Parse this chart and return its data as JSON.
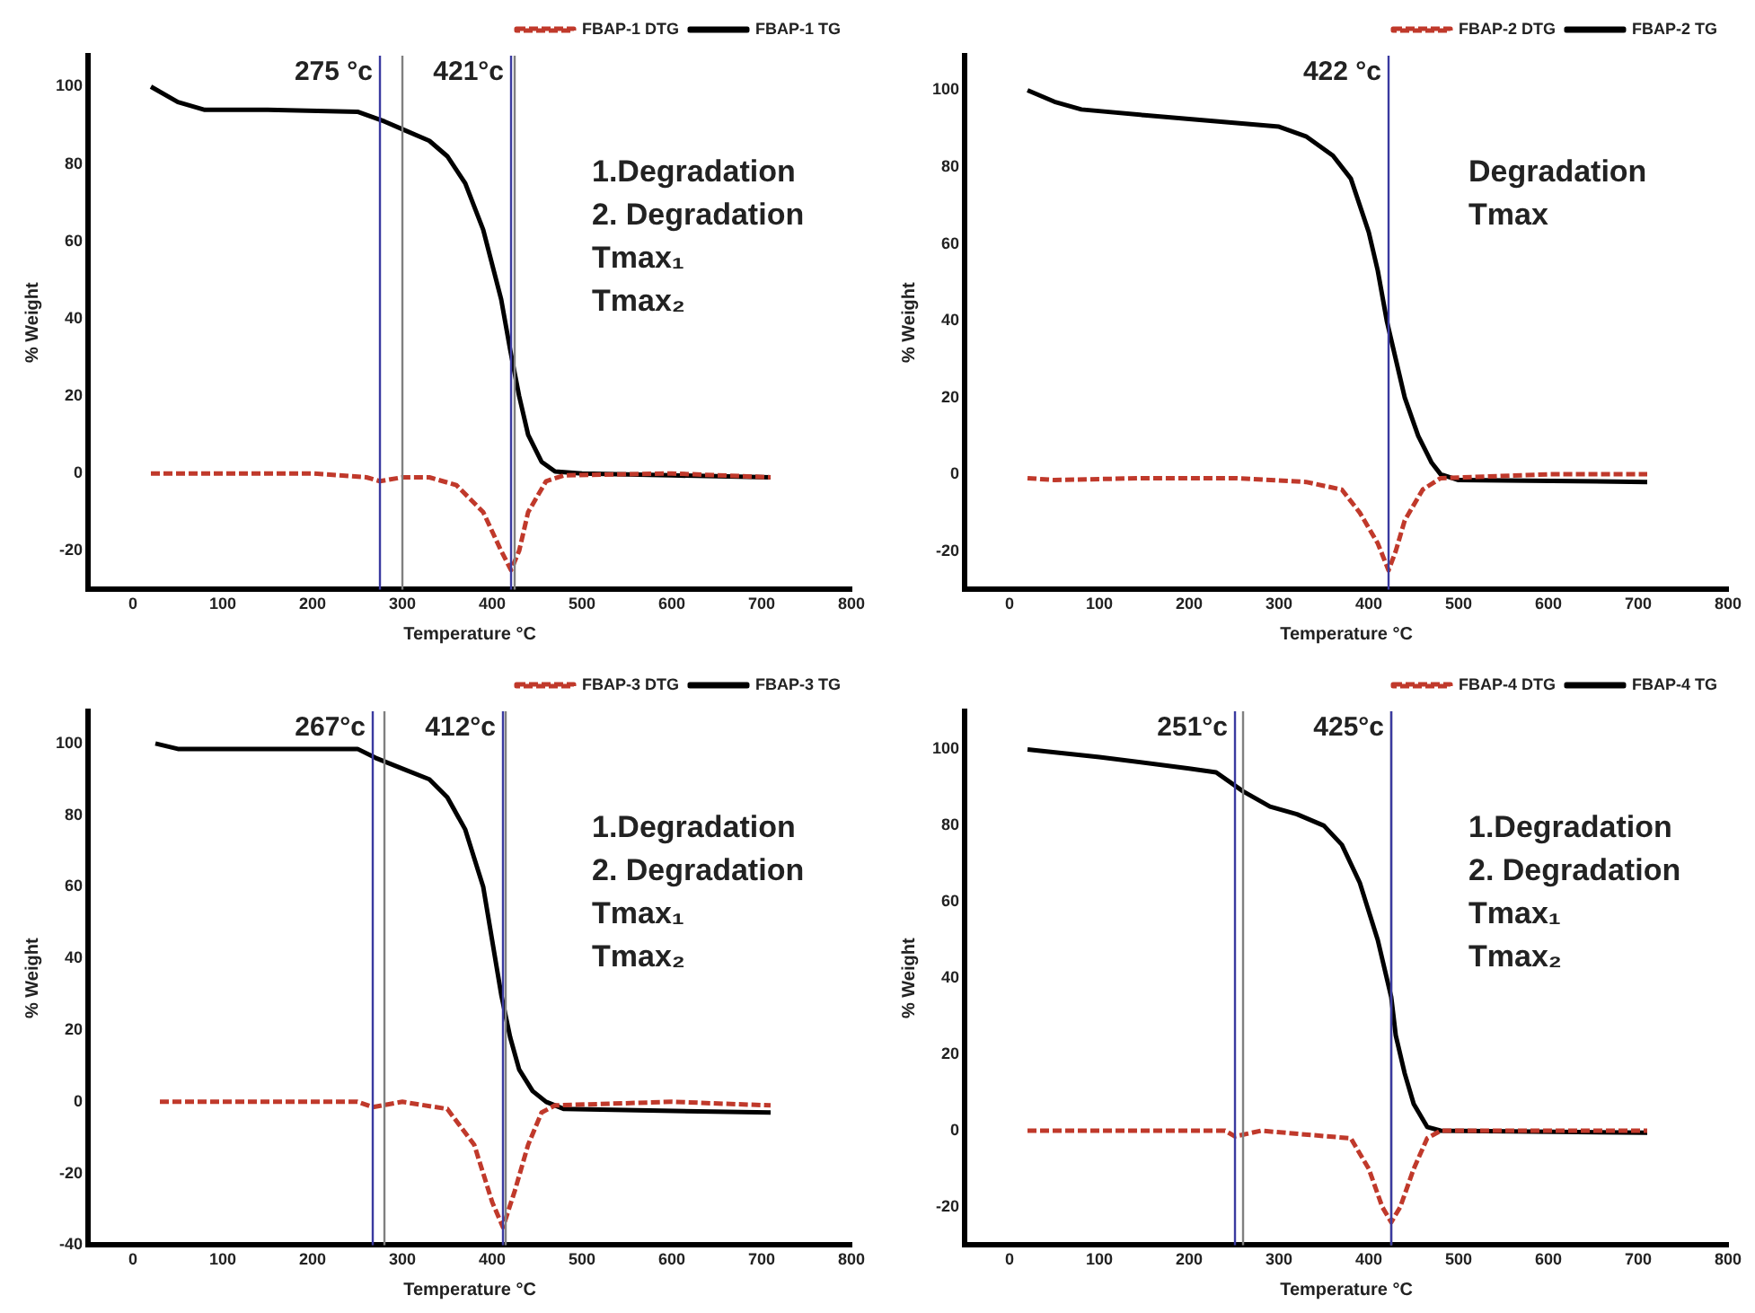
{
  "chart_data": [
    {
      "type": "line",
      "xlabel": "Temperature °C",
      "ylabel": "% Weight",
      "legend": "top right",
      "marker": "none",
      "xlim": [
        -50,
        800
      ],
      "ylim": [
        -30,
        108
      ],
      "xticks": [
        0,
        100,
        200,
        300,
        400,
        500,
        600,
        700,
        800
      ],
      "yticks": [
        -20,
        0,
        20,
        40,
        60,
        80,
        100
      ],
      "series": [
        {
          "name": "FBAP-1 TG",
          "color": "#000000",
          "line_style": "solid",
          "x": [
            20,
            50,
            80,
            150,
            250,
            280,
            300,
            330,
            350,
            370,
            390,
            410,
            420,
            430,
            440,
            455,
            470,
            500,
            600,
            710
          ],
          "values": [
            100,
            96,
            94,
            94,
            93.5,
            91,
            89,
            86,
            82,
            75,
            63,
            45,
            32,
            20,
            10,
            3,
            0.5,
            0,
            -0.5,
            -1
          ]
        },
        {
          "name": "FBAP-1 DTG",
          "color": "#c0392b",
          "line_style": "dashed",
          "x": [
            20,
            100,
            200,
            260,
            275,
            300,
            330,
            360,
            390,
            410,
            421,
            430,
            440,
            460,
            480,
            600,
            710
          ],
          "values": [
            0,
            0,
            0,
            -1,
            -2,
            -1,
            -1,
            -3,
            -10,
            -20,
            -25,
            -20,
            -10,
            -2,
            -0.5,
            0,
            -1
          ]
        }
      ],
      "ref_lines": [
        {
          "axis": "x",
          "value": 300,
          "color": "#808080"
        },
        {
          "axis": "x",
          "value": 425,
          "color": "#808080"
        },
        {
          "axis": "x",
          "value": 275,
          "color": "#3a3aa0",
          "label": "275 °c"
        },
        {
          "axis": "x",
          "value": 421,
          "color": "#3a3aa0",
          "label": "421°c"
        }
      ],
      "annotations": [
        "1.Degradation",
        "2. Degradation",
        "Tmax₁",
        "Tmax₂"
      ]
    },
    {
      "type": "line",
      "xlabel": "Temperature °C",
      "ylabel": "% Weight",
      "legend": "top right",
      "marker": "none",
      "xlim": [
        -50,
        800
      ],
      "ylim": [
        -30,
        109
      ],
      "xticks": [
        0,
        100,
        200,
        300,
        400,
        500,
        600,
        700,
        800
      ],
      "yticks": [
        -20,
        0,
        20,
        40,
        60,
        80,
        100
      ],
      "series": [
        {
          "name": "FBAP-2 TG",
          "color": "#000000",
          "line_style": "solid",
          "x": [
            20,
            50,
            80,
            150,
            250,
            300,
            330,
            360,
            380,
            400,
            410,
            420,
            430,
            440,
            455,
            470,
            480,
            500,
            710
          ],
          "values": [
            100,
            97,
            95,
            93.5,
            91.5,
            90.5,
            88,
            83,
            77,
            63,
            53,
            40,
            30,
            20,
            10,
            3,
            0,
            -1.5,
            -2
          ]
        },
        {
          "name": "FBAP-2 DTG",
          "color": "#c0392b",
          "line_style": "dashed",
          "x": [
            20,
            50,
            150,
            250,
            330,
            370,
            390,
            410,
            422,
            430,
            440,
            460,
            480,
            600,
            710
          ],
          "values": [
            -1,
            -1.5,
            -1,
            -1,
            -2,
            -4,
            -10,
            -18,
            -25,
            -20,
            -12,
            -4,
            -1,
            0,
            0
          ]
        }
      ],
      "ref_lines": [
        {
          "axis": "x",
          "value": 422,
          "color": "#3a3aa0",
          "label": "422 °c"
        }
      ],
      "annotations": [
        "Degradation",
        "Tmax"
      ]
    },
    {
      "type": "line",
      "xlabel": "Temperature °C",
      "ylabel": "% Weight",
      "legend": "top right",
      "marker": "none",
      "xlim": [
        -50,
        800
      ],
      "ylim": [
        -40,
        109
      ],
      "xticks": [
        0,
        100,
        200,
        300,
        400,
        500,
        600,
        700,
        800
      ],
      "yticks": [
        -40,
        -20,
        0,
        20,
        40,
        60,
        80,
        100
      ],
      "series": [
        {
          "name": "FBAP-3 TG",
          "color": "#000000",
          "line_style": "solid",
          "x": [
            25,
            50,
            250,
            270,
            300,
            330,
            350,
            370,
            390,
            400,
            410,
            420,
            430,
            445,
            460,
            480,
            710
          ],
          "values": [
            100,
            98.5,
            98.5,
            96,
            93,
            90,
            85,
            76,
            60,
            45,
            30,
            18,
            9,
            3,
            0,
            -2,
            -3
          ]
        },
        {
          "name": "FBAP-3 DTG",
          "color": "#c0392b",
          "line_style": "dashed",
          "x": [
            30,
            250,
            267,
            300,
            350,
            380,
            400,
            412,
            425,
            440,
            455,
            470,
            600,
            710
          ],
          "values": [
            0,
            0,
            -1.5,
            0,
            -2,
            -12,
            -28,
            -35,
            -25,
            -12,
            -3,
            -1,
            0,
            -1
          ]
        }
      ],
      "ref_lines": [
        {
          "axis": "x",
          "value": 280,
          "color": "#808080"
        },
        {
          "axis": "x",
          "value": 415,
          "color": "#808080"
        },
        {
          "axis": "x",
          "value": 267,
          "color": "#3a3aa0",
          "label": "267°c"
        },
        {
          "axis": "x",
          "value": 412,
          "color": "#3a3aa0",
          "label": "412°c"
        }
      ],
      "annotations": [
        "1.Degradation",
        "2. Degradation",
        "Tmax₁",
        "Tmax₂"
      ]
    },
    {
      "type": "line",
      "xlabel": "Temperature °C",
      "ylabel": "% Weight",
      "legend": "top right",
      "marker": "none",
      "xlim": [
        -50,
        800
      ],
      "ylim": [
        -30,
        110
      ],
      "xticks": [
        0,
        100,
        200,
        300,
        400,
        500,
        600,
        700,
        800
      ],
      "yticks": [
        -20,
        0,
        20,
        40,
        60,
        80,
        100
      ],
      "series": [
        {
          "name": "FBAP-4 TG",
          "color": "#000000",
          "line_style": "solid",
          "x": [
            20,
            100,
            200,
            230,
            260,
            290,
            320,
            350,
            370,
            390,
            410,
            425,
            430,
            440,
            450,
            465,
            480,
            710
          ],
          "values": [
            100,
            98,
            95,
            94,
            89,
            85,
            83,
            80,
            75,
            65,
            50,
            35,
            25,
            15,
            7,
            1,
            0,
            -0.5
          ]
        },
        {
          "name": "FBAP-4 DTG",
          "color": "#c0392b",
          "line_style": "dashed",
          "x": [
            20,
            240,
            251,
            280,
            380,
            400,
            415,
            425,
            435,
            450,
            465,
            480,
            710
          ],
          "values": [
            0,
            0,
            -1.5,
            0,
            -2,
            -10,
            -20,
            -24,
            -20,
            -10,
            -2,
            0,
            0
          ]
        }
      ],
      "ref_lines": [
        {
          "axis": "x",
          "value": 260,
          "color": "#808080"
        },
        {
          "axis": "x",
          "value": 425,
          "color": "#808080"
        },
        {
          "axis": "x",
          "value": 251,
          "color": "#3a3aa0",
          "label": "251°c"
        },
        {
          "axis": "x",
          "value": 425,
          "color": "#3a3aa0",
          "label": "425°c"
        }
      ],
      "annotations": [
        "1.Degradation",
        "2. Degradation",
        "Tmax₁",
        "Tmax₂"
      ]
    }
  ]
}
